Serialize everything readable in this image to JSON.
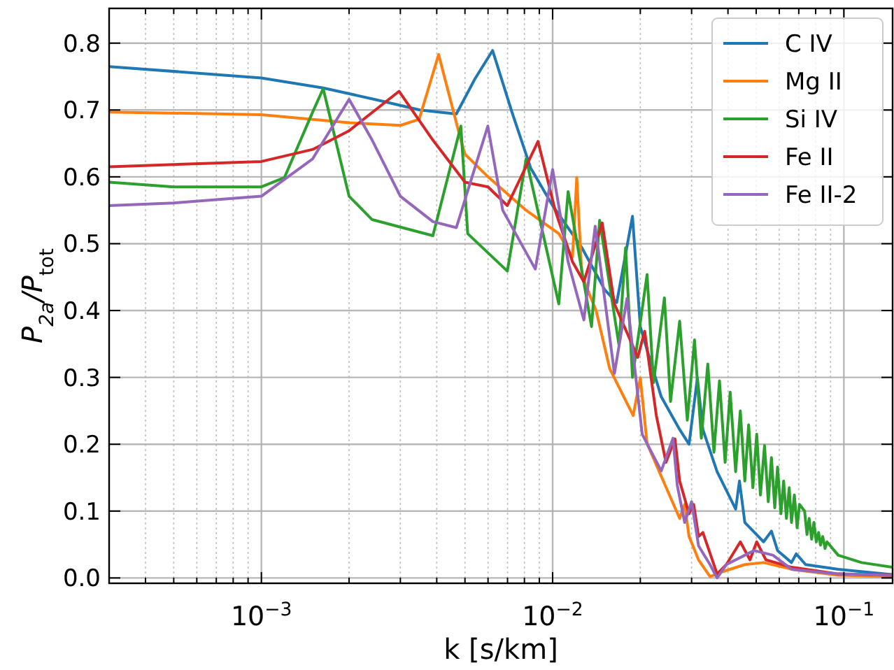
{
  "chart_data": {
    "type": "line",
    "xlabel": "k [s/km]",
    "ylabel": "P$_{2a}$/P$_{tot}$",
    "log": "x",
    "grid": true,
    "legend": "top right",
    "line_style": "solid",
    "marker": "none",
    "xlim": [
      0.0003,
      0.147
    ],
    "ylim": [
      -0.008,
      0.852
    ],
    "xticks": [
      {
        "value": 0.0003,
        "label": null
      },
      {
        "value": 0.0004,
        "label": null
      },
      {
        "value": 0.0005,
        "label": null
      },
      {
        "value": 0.0006,
        "label": null
      },
      {
        "value": 0.0007,
        "label": null
      },
      {
        "value": 0.0008,
        "label": null
      },
      {
        "value": 0.0009,
        "label": null
      },
      {
        "value": 0.001,
        "label": "10$^{−3}$"
      },
      {
        "value": 0.002,
        "label": null
      },
      {
        "value": 0.003,
        "label": null
      },
      {
        "value": 0.004,
        "label": null
      },
      {
        "value": 0.005,
        "label": null
      },
      {
        "value": 0.006,
        "label": null
      },
      {
        "value": 0.007,
        "label": null
      },
      {
        "value": 0.008,
        "label": null
      },
      {
        "value": 0.009,
        "label": null
      },
      {
        "value": 0.01,
        "label": "10$^{−2}$"
      },
      {
        "value": 0.02,
        "label": null
      },
      {
        "value": 0.03,
        "label": null
      },
      {
        "value": 0.04,
        "label": null
      },
      {
        "value": 0.05,
        "label": null
      },
      {
        "value": 0.06,
        "label": null
      },
      {
        "value": 0.07,
        "label": null
      },
      {
        "value": 0.08,
        "label": null
      },
      {
        "value": 0.09,
        "label": null
      },
      {
        "value": 0.1,
        "label": "10$^{−1}$"
      }
    ],
    "yticks": [
      {
        "value": 0,
        "label": "0.0"
      },
      {
        "value": 0.1,
        "label": "0.1"
      },
      {
        "value": 0.2,
        "label": "0.2"
      },
      {
        "value": 0.3,
        "label": "0.3"
      },
      {
        "value": 0.4,
        "label": "0.4"
      },
      {
        "value": 0.5,
        "label": "0.5"
      },
      {
        "value": 0.6,
        "label": "0.6"
      },
      {
        "value": 0.7,
        "label": "0.7"
      },
      {
        "value": 0.8,
        "label": "0.8"
      }
    ],
    "series": [
      {
        "name": "C IV",
        "color": "#1f77b4",
        "x": [
          0.0003,
          0.001,
          0.00163,
          0.0025,
          0.0035,
          0.00467,
          0.0054,
          0.00622,
          0.00726,
          0.00841,
          0.01,
          0.0126,
          0.0151,
          0.0166,
          0.0188,
          0.02,
          0.0211,
          0.0236,
          0.0273,
          0.0294,
          0.0314,
          0.0328,
          0.0367,
          0.0425,
          0.0438,
          0.0457,
          0.053,
          0.0564,
          0.0592,
          0.0661,
          0.0686,
          0.0739,
          0.0956,
          0.147
        ],
        "values": [
          0.765,
          0.748,
          0.733,
          0.715,
          0.7,
          0.694,
          0.746,
          0.789,
          0.696,
          0.613,
          0.557,
          0.494,
          0.431,
          0.412,
          0.541,
          0.376,
          0.341,
          0.271,
          0.222,
          0.2,
          0.299,
          0.222,
          0.159,
          0.103,
          0.145,
          0.083,
          0.054,
          0.07,
          0.041,
          0.023,
          0.036,
          0.02,
          0.013,
          0.005
        ]
      },
      {
        "name": "Mg II",
        "color": "#ff7f0e",
        "x": [
          0.0003,
          0.001,
          0.002,
          0.003,
          0.00348,
          0.00406,
          0.00484,
          0.005,
          0.006,
          0.00811,
          0.0105,
          0.0117,
          0.0121,
          0.0126,
          0.0141,
          0.0157,
          0.0189,
          0.02,
          0.0211,
          0.0236,
          0.0273,
          0.0284,
          0.0294,
          0.0317,
          0.0347,
          0.0381,
          0.0457,
          0.053,
          0.0661,
          0.0956,
          0.147
        ],
        "values": [
          0.697,
          0.693,
          0.681,
          0.677,
          0.686,
          0.783,
          0.655,
          0.634,
          0.6,
          0.55,
          0.515,
          0.48,
          0.599,
          0.452,
          0.4,
          0.313,
          0.243,
          0.299,
          0.201,
          0.152,
          0.089,
          0.11,
          0.062,
          0.027,
          0.002,
          0.009,
          0.02,
          0.023,
          0.013,
          0.004,
          0.002
        ]
      },
      {
        "name": "Si IV",
        "color": "#2ca02c",
        "x": [
          0.0003,
          0.0005,
          0.001,
          0.0012,
          0.0015,
          0.00163,
          0.002,
          0.0024,
          0.00388,
          0.00484,
          0.00511,
          0.00699,
          0.00811,
          0.0105,
          0.0113,
          0.0136,
          0.0145,
          0.0169,
          0.0178,
          0.0188,
          0.0211,
          0.0222,
          0.0242,
          0.0254,
          0.0273,
          0.029,
          0.0307,
          0.0324,
          0.0341,
          0.0358,
          0.0374,
          0.0391,
          0.0407,
          0.0425,
          0.0441,
          0.0457,
          0.0471,
          0.0487,
          0.0502,
          0.0517,
          0.0534,
          0.055,
          0.0564,
          0.0579,
          0.0592,
          0.0608,
          0.0621,
          0.0635,
          0.0649,
          0.0661,
          0.0676,
          0.0691,
          0.0704,
          0.0733,
          0.0747,
          0.076,
          0.0775,
          0.0789,
          0.0804,
          0.0819,
          0.0831,
          0.0846,
          0.0862,
          0.0875,
          0.0956,
          0.115,
          0.147
        ],
        "values": [
          0.592,
          0.585,
          0.585,
          0.599,
          0.697,
          0.732,
          0.571,
          0.536,
          0.512,
          0.676,
          0.515,
          0.459,
          0.627,
          0.41,
          0.578,
          0.376,
          0.535,
          0.348,
          0.494,
          0.3,
          0.454,
          0.292,
          0.419,
          0.264,
          0.384,
          0.236,
          0.356,
          0.209,
          0.32,
          0.188,
          0.295,
          0.173,
          0.278,
          0.159,
          0.25,
          0.145,
          0.229,
          0.135,
          0.215,
          0.124,
          0.198,
          0.114,
          0.18,
          0.105,
          0.166,
          0.096,
          0.145,
          0.089,
          0.135,
          0.083,
          0.124,
          0.075,
          0.11,
          0.1,
          0.065,
          0.089,
          0.058,
          0.083,
          0.054,
          0.068,
          0.049,
          0.062,
          0.044,
          0.054,
          0.034,
          0.023,
          0.016
        ]
      },
      {
        "name": "Fe II",
        "color": "#d62728",
        "x": [
          0.0003,
          0.001,
          0.0015,
          0.002,
          0.00297,
          0.00388,
          0.005,
          0.006,
          0.00699,
          0.00891,
          0.0102,
          0.0117,
          0.0128,
          0.0148,
          0.0163,
          0.0196,
          0.0207,
          0.0227,
          0.0245,
          0.0263,
          0.0273,
          0.0294,
          0.0305,
          0.0317,
          0.0328,
          0.0367,
          0.0395,
          0.0441,
          0.0476,
          0.0502,
          0.054,
          0.0661,
          0.0956,
          0.147
        ],
        "values": [
          0.615,
          0.623,
          0.641,
          0.669,
          0.728,
          0.655,
          0.592,
          0.585,
          0.557,
          0.653,
          0.55,
          0.473,
          0.443,
          0.531,
          0.41,
          0.33,
          0.369,
          0.243,
          0.173,
          0.208,
          0.145,
          0.096,
          0.11,
          0.062,
          0.068,
          0.006,
          0.02,
          0.054,
          0.027,
          0.054,
          0.027,
          0.016,
          0.006,
          0.004
        ]
      },
      {
        "name": "Fe II-2",
        "color": "#9467bd",
        "x": [
          0.0003,
          0.0005,
          0.001,
          0.0015,
          0.002,
          0.0024,
          0.003,
          0.00388,
          0.00467,
          0.00599,
          0.00674,
          0.00872,
          0.01,
          0.0113,
          0.0128,
          0.014,
          0.0163,
          0.018,
          0.0203,
          0.0236,
          0.0259,
          0.0268,
          0.0284,
          0.03,
          0.0317,
          0.0347,
          0.0367,
          0.0395,
          0.0457,
          0.0491,
          0.0571,
          0.0661,
          0.0956,
          0.147
        ],
        "values": [
          0.557,
          0.561,
          0.571,
          0.627,
          0.716,
          0.655,
          0.571,
          0.533,
          0.524,
          0.676,
          0.55,
          0.462,
          0.611,
          0.473,
          0.386,
          0.526,
          0.306,
          0.418,
          0.215,
          0.16,
          0.209,
          0.138,
          0.083,
          0.114,
          0.048,
          0.02,
          0.0,
          0.02,
          0.034,
          0.041,
          0.034,
          0.013,
          0.006,
          0.004
        ]
      }
    ]
  }
}
